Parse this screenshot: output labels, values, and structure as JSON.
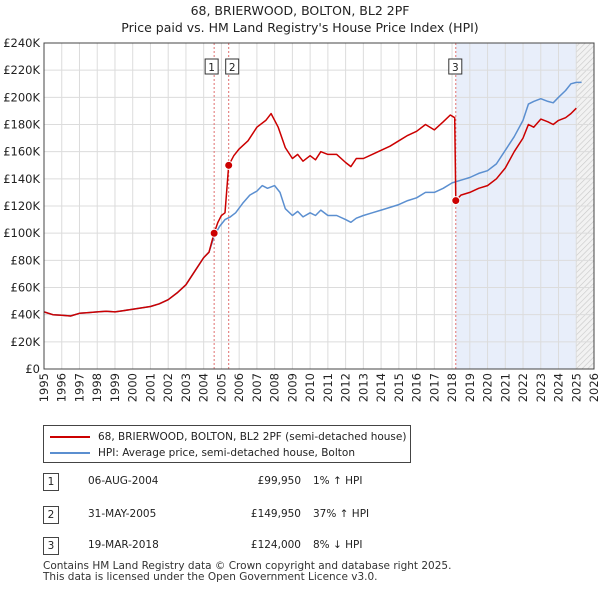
{
  "chart_data": {
    "type": "line",
    "title": "68, BRIERWOOD, BOLTON, BL2 2PF",
    "subtitle": "Price paid vs. HM Land Registry's House Price Index (HPI)",
    "xlim": [
      1995,
      2026
    ],
    "ylim": [
      0,
      240000
    ],
    "x_ticks": [
      "1995",
      "1996",
      "1997",
      "1998",
      "1999",
      "2000",
      "2001",
      "2002",
      "2003",
      "2004",
      "2005",
      "2006",
      "2007",
      "2008",
      "2009",
      "2010",
      "2011",
      "2012",
      "2013",
      "2014",
      "2015",
      "2016",
      "2017",
      "2018",
      "2019",
      "2020",
      "2021",
      "2022",
      "2023",
      "2024",
      "2025",
      "2026"
    ],
    "y_ticks": [
      {
        "value": 0,
        "label": "£0"
      },
      {
        "value": 20000,
        "label": "£20K"
      },
      {
        "value": 40000,
        "label": "£40K"
      },
      {
        "value": 60000,
        "label": "£60K"
      },
      {
        "value": 80000,
        "label": "£80K"
      },
      {
        "value": 100000,
        "label": "£100K"
      },
      {
        "value": 120000,
        "label": "£120K"
      },
      {
        "value": 140000,
        "label": "£140K"
      },
      {
        "value": 160000,
        "label": "£160K"
      },
      {
        "value": 180000,
        "label": "£180K"
      },
      {
        "value": 200000,
        "label": "£200K"
      },
      {
        "value": 220000,
        "label": "£220K"
      },
      {
        "value": 240000,
        "label": "£240K"
      }
    ],
    "grid": true,
    "forecast_start": 2025.0,
    "series": [
      {
        "name": "68, BRIERWOOD, BOLTON, BL2 2PF (semi-detached house)",
        "color": "#cc0000",
        "x": [
          1995.0,
          1995.5,
          1996.0,
          1996.5,
          1997.0,
          1997.5,
          1998.0,
          1998.5,
          1999.0,
          1999.5,
          2000.0,
          2000.5,
          2001.0,
          2001.5,
          2002.0,
          2002.5,
          2003.0,
          2003.5,
          2004.0,
          2004.3,
          2004.59,
          2004.8,
          2005.0,
          2005.2,
          2005.41,
          2005.7,
          2006.0,
          2006.5,
          2007.0,
          2007.5,
          2007.8,
          2008.2,
          2008.6,
          2009.0,
          2009.3,
          2009.6,
          2010.0,
          2010.3,
          2010.6,
          2011.0,
          2011.5,
          2012.0,
          2012.3,
          2012.6,
          2013.0,
          2013.5,
          2014.0,
          2014.5,
          2015.0,
          2015.5,
          2016.0,
          2016.5,
          2017.0,
          2017.5,
          2017.9,
          2018.15,
          2018.21,
          2018.5,
          2019.0,
          2019.5,
          2020.0,
          2020.5,
          2021.0,
          2021.5,
          2022.0,
          2022.3,
          2022.6,
          2023.0,
          2023.4,
          2023.7,
          2024.0,
          2024.4,
          2024.7,
          2025.0
        ],
        "y": [
          42000,
          40000,
          39500,
          39000,
          41000,
          41500,
          42000,
          42500,
          42000,
          43000,
          44000,
          45000,
          46000,
          48000,
          51000,
          56000,
          62000,
          72000,
          82000,
          86000,
          99950,
          108000,
          113000,
          115000,
          149950,
          157000,
          162000,
          168000,
          178000,
          183000,
          188000,
          178000,
          163000,
          155000,
          158000,
          153000,
          157000,
          154000,
          160000,
          158000,
          158000,
          152000,
          149000,
          155000,
          155000,
          158000,
          161000,
          164000,
          168000,
          172000,
          175000,
          180000,
          176000,
          182000,
          187000,
          185000,
          124000,
          128000,
          130000,
          133000,
          135000,
          140000,
          148000,
          160000,
          170000,
          180000,
          178000,
          184000,
          182000,
          180000,
          183000,
          185000,
          188000,
          192000
        ]
      },
      {
        "name": "HPI: Average price, semi-detached house, Bolton",
        "color": "#5b8fd0",
        "x": [
          1995.0,
          1995.5,
          1996.0,
          1996.5,
          1997.0,
          1997.5,
          1998.0,
          1998.5,
          1999.0,
          1999.5,
          2000.0,
          2000.5,
          2001.0,
          2001.5,
          2002.0,
          2002.5,
          2003.0,
          2003.5,
          2004.0,
          2004.3,
          2004.6,
          2004.9,
          2005.2,
          2005.5,
          2005.8,
          2006.2,
          2006.6,
          2007.0,
          2007.3,
          2007.6,
          2008.0,
          2008.3,
          2008.6,
          2009.0,
          2009.3,
          2009.6,
          2010.0,
          2010.3,
          2010.6,
          2011.0,
          2011.5,
          2012.0,
          2012.3,
          2012.6,
          2013.0,
          2013.5,
          2014.0,
          2014.5,
          2015.0,
          2015.5,
          2016.0,
          2016.5,
          2017.0,
          2017.5,
          2018.0,
          2018.5,
          2019.0,
          2019.5,
          2020.0,
          2020.5,
          2021.0,
          2021.5,
          2022.0,
          2022.3,
          2022.6,
          2023.0,
          2023.4,
          2023.7,
          2024.0,
          2024.4,
          2024.7,
          2025.0,
          2025.3
        ],
        "y": [
          42000,
          40000,
          39500,
          39000,
          41000,
          41500,
          42000,
          42500,
          42000,
          43000,
          44000,
          45000,
          46000,
          48000,
          51000,
          56000,
          62000,
          72000,
          82000,
          86000,
          98000,
          105000,
          110000,
          112000,
          115000,
          122000,
          128000,
          131000,
          135000,
          133000,
          135000,
          130000,
          118000,
          113000,
          116000,
          112000,
          115000,
          113000,
          117000,
          113000,
          113000,
          110000,
          108000,
          111000,
          113000,
          115000,
          117000,
          119000,
          121000,
          124000,
          126000,
          130000,
          130000,
          133000,
          137000,
          139000,
          141000,
          144000,
          146000,
          151000,
          161000,
          171000,
          183000,
          195000,
          197000,
          199000,
          197000,
          196000,
          200000,
          205000,
          210000,
          211000,
          211000
        ]
      }
    ],
    "transactions": [
      {
        "label": "1",
        "x": 2004.59,
        "y": 99950,
        "date": "06-AUG-2004",
        "price": "£99,950",
        "hpi": "1% ↑ HPI"
      },
      {
        "label": "2",
        "x": 2005.41,
        "y": 149950,
        "date": "31-MAY-2005",
        "price": "£149,950",
        "hpi": "37% ↑ HPI"
      },
      {
        "label": "3",
        "x": 2018.21,
        "y": 124000,
        "date": "19-MAR-2018",
        "price": "£124,000",
        "hpi": "8% ↓ HPI"
      }
    ]
  },
  "legend": {
    "property": "68, BRIERWOOD, BOLTON, BL2 2PF (semi-detached house)",
    "hpi": "HPI: Average price, semi-detached house, Bolton"
  },
  "footer": {
    "line1": "Contains HM Land Registry data © Crown copyright and database right 2025.",
    "line2": "This data is licensed under the Open Government Licence v3.0."
  }
}
